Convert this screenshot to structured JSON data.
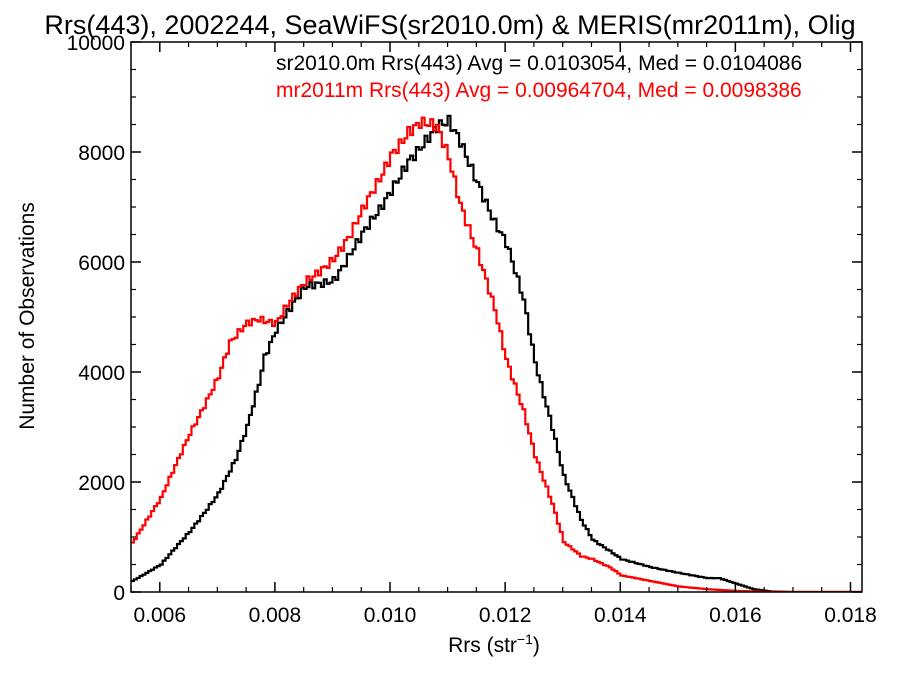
{
  "chart_data": {
    "type": "line",
    "title": "Rrs(443), 2002244, SeaWiFS(sr2010.0m) & MERIS(mr2011m), Olig",
    "xlabel": "Rrs (str",
    "xlabel_sup": "−1",
    "xlabel_close": ")",
    "ylabel": "Number of Observations",
    "xlim": [
      0.0055,
      0.0182
    ],
    "ylim": [
      0,
      10000
    ],
    "xticks": [
      0.006,
      0.008,
      0.01,
      0.012,
      0.014,
      0.016,
      0.018
    ],
    "xtick_labels": [
      "0.006",
      "0.008",
      "0.010",
      "0.012",
      "0.014",
      "0.016",
      "0.018"
    ],
    "yticks": [
      0,
      2000,
      4000,
      6000,
      8000,
      10000
    ],
    "ytick_labels": [
      "0",
      "2000",
      "4000",
      "6000",
      "8000",
      "10000"
    ],
    "grid": false,
    "legend_position": "top-right",
    "colors": {
      "sr2010": "#000000",
      "mr2011": "#ff0000",
      "axes": "#000000"
    },
    "series": [
      {
        "name": "sr2010.0m Rrs(443) Avg = 0.0103054, Med = 0.0104086",
        "color": "#000000",
        "x": [
          0.0055,
          0.006,
          0.0065,
          0.007,
          0.0073,
          0.0075,
          0.0077,
          0.0078,
          0.008,
          0.0082,
          0.0085,
          0.0088,
          0.009,
          0.0093,
          0.0095,
          0.0098,
          0.01,
          0.0103,
          0.0105,
          0.0108,
          0.011,
          0.0112,
          0.0115,
          0.0118,
          0.012,
          0.0123,
          0.0125,
          0.0128,
          0.013,
          0.0133,
          0.0135,
          0.0138,
          0.014,
          0.0145,
          0.015,
          0.0155,
          0.0157,
          0.016,
          0.0163,
          0.0166,
          0.017,
          0.0182
        ],
        "values": [
          200,
          500,
          1100,
          1800,
          2400,
          3000,
          3800,
          4300,
          4800,
          5100,
          5500,
          5600,
          5700,
          6200,
          6500,
          6900,
          7300,
          7900,
          8100,
          8400,
          8500,
          8200,
          7500,
          6700,
          6300,
          5300,
          4200,
          3000,
          2100,
          1300,
          950,
          750,
          600,
          450,
          350,
          250,
          250,
          150,
          50,
          10,
          0,
          0
        ]
      },
      {
        "name": "mr2011m Rrs(443) Avg = 0.00964704, Med = 0.0098386",
        "color": "#ff0000",
        "x": [
          0.0055,
          0.006,
          0.0065,
          0.007,
          0.0072,
          0.0075,
          0.0077,
          0.008,
          0.0082,
          0.0085,
          0.0088,
          0.009,
          0.0093,
          0.0095,
          0.0098,
          0.01,
          0.0103,
          0.0105,
          0.0108,
          0.011,
          0.0112,
          0.0115,
          0.0118,
          0.012,
          0.0123,
          0.0125,
          0.0128,
          0.013,
          0.0133,
          0.0135,
          0.0138,
          0.014,
          0.0145,
          0.015,
          0.0155,
          0.016,
          0.0165,
          0.017,
          0.0182
        ],
        "values": [
          900,
          1700,
          2900,
          3900,
          4500,
          4900,
          5000,
          4900,
          5200,
          5600,
          5900,
          6100,
          6500,
          6900,
          7500,
          8000,
          8400,
          8500,
          8400,
          7900,
          7100,
          6200,
          5100,
          4200,
          3300,
          2500,
          1600,
          900,
          650,
          600,
          450,
          300,
          200,
          100,
          50,
          20,
          5,
          0,
          0
        ]
      }
    ]
  }
}
